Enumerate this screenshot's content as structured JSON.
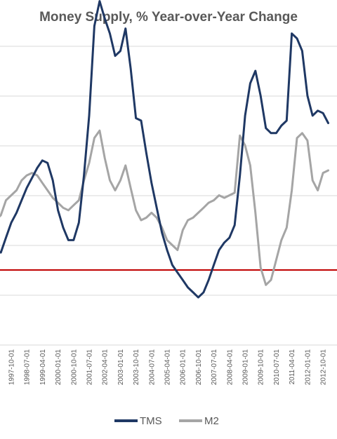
{
  "chart_data": {
    "type": "line",
    "title": "Money Supply, % Year-over-Year Change",
    "xlabel": "",
    "ylabel": "",
    "grid": true,
    "legend_position": "bottom",
    "x_tick_labels": [
      "1997-10-01",
      "1998-07-01",
      "1999-04-01",
      "2000-01-01",
      "2000-10-01",
      "2001-07-01",
      "2002-04-01",
      "2003-01-01",
      "2003-10-01",
      "2004-07-01",
      "2005-04-01",
      "2006-01-01",
      "2006-10-01",
      "2007-07-01",
      "2008-04-01",
      "2009-01-01",
      "2009-10-01",
      "2010-07-01",
      "2011-04-01",
      "2012-01-01",
      "2012-10-01"
    ],
    "zero_line_color": "#c00000",
    "series": [
      {
        "name": "TMS",
        "color": "#1f3864",
        "x": [
          "1997-01-01",
          "1997-04-01",
          "1997-07-01",
          "1997-10-01",
          "1998-01-01",
          "1998-04-01",
          "1998-07-01",
          "1998-10-01",
          "1999-01-01",
          "1999-04-01",
          "1999-07-01",
          "1999-10-01",
          "2000-01-01",
          "2000-04-01",
          "2000-07-01",
          "2000-10-01",
          "2001-01-01",
          "2001-04-01",
          "2001-07-01",
          "2001-10-01",
          "2002-01-01",
          "2002-04-01",
          "2002-07-01",
          "2002-10-01",
          "2003-01-01",
          "2003-04-01",
          "2003-07-01",
          "2003-10-01",
          "2004-01-01",
          "2004-04-01",
          "2004-07-01",
          "2004-10-01",
          "2005-01-01",
          "2005-04-01",
          "2005-07-01",
          "2005-10-01",
          "2006-01-01",
          "2006-04-01",
          "2006-07-01",
          "2006-10-01",
          "2007-01-01",
          "2007-04-01",
          "2007-07-01",
          "2007-10-01",
          "2008-01-01",
          "2008-04-01",
          "2008-07-01",
          "2008-10-01",
          "2009-01-01",
          "2009-04-01",
          "2009-07-01",
          "2009-10-01",
          "2010-01-01",
          "2010-04-01",
          "2010-07-01",
          "2010-10-01",
          "2011-01-01",
          "2011-04-01",
          "2011-07-01",
          "2011-10-01",
          "2012-01-01",
          "2012-04-01",
          "2012-07-01",
          "2012-10-01",
          "2013-01-01"
        ],
        "values": [
          0.8,
          0.7,
          1.3,
          1.9,
          2.3,
          2.8,
          3.3,
          3.7,
          4.1,
          4.4,
          4.3,
          3.6,
          2.4,
          1.7,
          1.2,
          1.2,
          1.9,
          3.8,
          6.2,
          9.8,
          10.8,
          10.1,
          9.5,
          8.6,
          8.8,
          9.7,
          8.1,
          6.1,
          6.0,
          4.7,
          3.5,
          2.5,
          1.5,
          0.8,
          0.2,
          -0.1,
          -0.4,
          -0.7,
          -0.9,
          -1.1,
          -0.9,
          -0.4,
          0.2,
          0.8,
          1.1,
          1.3,
          1.8,
          3.8,
          6.2,
          7.5,
          8.0,
          7.0,
          5.7,
          5.5,
          5.5,
          5.8,
          6.0,
          9.5,
          9.3,
          8.8,
          7.0,
          6.2,
          6.4,
          6.3,
          5.9
        ]
      },
      {
        "name": "M2",
        "color": "#a5a5a5",
        "x": [
          "1997-01-01",
          "1997-04-01",
          "1997-07-01",
          "1997-10-01",
          "1998-01-01",
          "1998-04-01",
          "1998-07-01",
          "1998-10-01",
          "1999-01-01",
          "1999-04-01",
          "1999-07-01",
          "1999-10-01",
          "2000-01-01",
          "2000-04-01",
          "2000-07-01",
          "2000-10-01",
          "2001-01-01",
          "2001-04-01",
          "2001-07-01",
          "2001-10-01",
          "2002-01-01",
          "2002-04-01",
          "2002-07-01",
          "2002-10-01",
          "2003-01-01",
          "2003-04-01",
          "2003-07-01",
          "2003-10-01",
          "2004-01-01",
          "2004-04-01",
          "2004-07-01",
          "2004-10-01",
          "2005-01-01",
          "2005-04-01",
          "2005-07-01",
          "2005-10-01",
          "2006-01-01",
          "2006-04-01",
          "2006-07-01",
          "2006-10-01",
          "2007-01-01",
          "2007-04-01",
          "2007-07-01",
          "2007-10-01",
          "2008-01-01",
          "2008-04-01",
          "2008-07-01",
          "2008-10-01",
          "2009-01-01",
          "2009-04-01",
          "2009-07-01",
          "2009-10-01",
          "2010-01-01",
          "2010-04-01",
          "2010-07-01",
          "2010-10-01",
          "2011-01-01",
          "2011-04-01",
          "2011-07-01",
          "2011-10-01",
          "2012-01-01",
          "2012-04-01",
          "2012-07-01",
          "2012-10-01",
          "2013-01-01"
        ],
        "values": [
          2.0,
          2.2,
          2.8,
          3.0,
          3.2,
          3.6,
          3.8,
          3.9,
          3.8,
          3.5,
          3.2,
          2.9,
          2.7,
          2.5,
          2.4,
          2.6,
          2.8,
          3.6,
          4.3,
          5.3,
          5.6,
          4.5,
          3.6,
          3.2,
          3.6,
          4.2,
          3.3,
          2.4,
          2.0,
          2.1,
          2.3,
          2.1,
          1.7,
          1.2,
          1.0,
          0.8,
          1.6,
          2.0,
          2.1,
          2.3,
          2.5,
          2.7,
          2.8,
          3.0,
          2.9,
          3.0,
          3.1,
          5.4,
          5.0,
          4.2,
          2.3,
          0.1,
          -0.6,
          -0.4,
          0.4,
          1.2,
          1.7,
          3.2,
          5.3,
          5.5,
          5.2,
          3.6,
          3.2,
          3.9,
          4.0
        ]
      }
    ]
  }
}
